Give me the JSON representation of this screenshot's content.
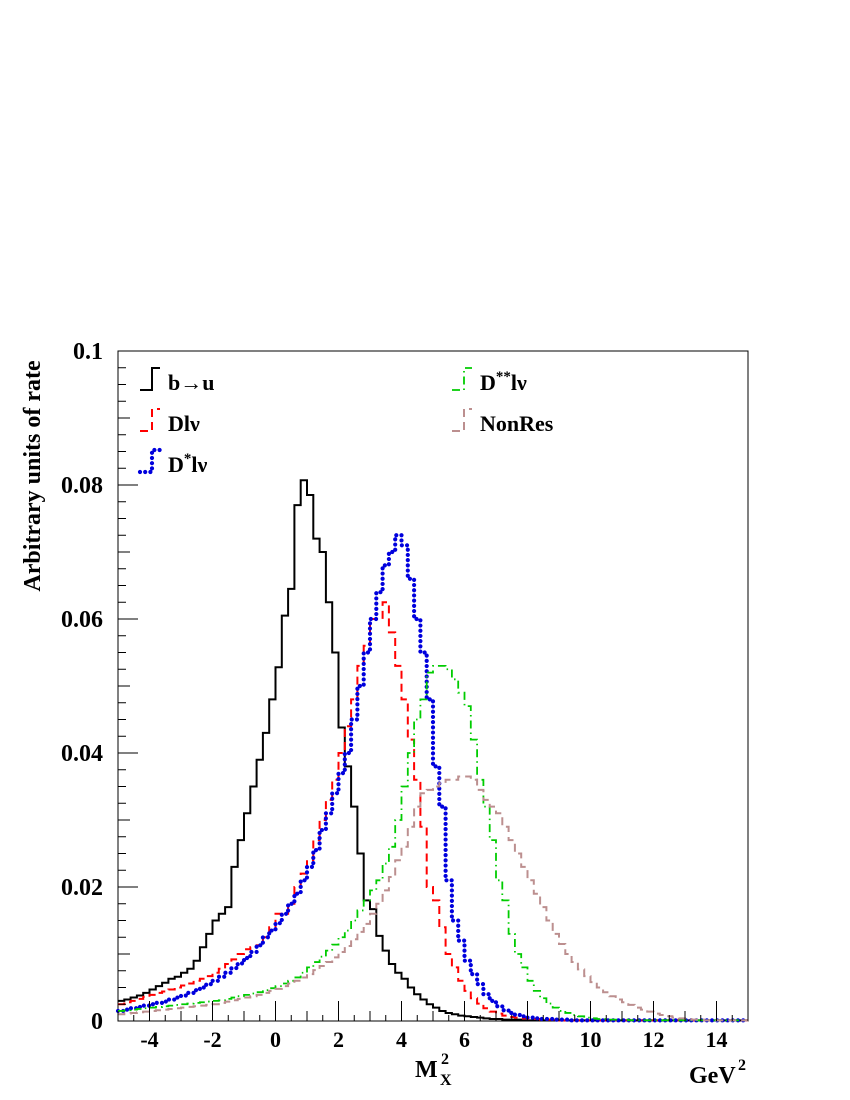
{
  "chart_data": {
    "type": "line",
    "style": "step-histogram",
    "xlabel": "M",
    "xlabel_sup": "2",
    "xlabel_sub": "X",
    "xunit": "GeV",
    "xunit_sup": "2",
    "ylabel": "Arbitrary units of rate",
    "xlim": [
      -5,
      15
    ],
    "ylim": [
      0,
      0.1
    ],
    "grid": false,
    "x_ticks": [
      "-4",
      "-2",
      "0",
      "2",
      "4",
      "6",
      "8",
      "10",
      "12",
      "14"
    ],
    "x_tick_values": [
      -4,
      -2,
      0,
      2,
      4,
      6,
      8,
      10,
      12,
      14
    ],
    "y_ticks": [
      "0",
      "0.02",
      "0.04",
      "0.06",
      "0.08",
      "0.1"
    ],
    "y_tick_values": [
      0,
      0.02,
      0.04,
      0.06,
      0.08,
      0.1
    ],
    "bin_width": 0.2,
    "x": [
      -5.0,
      -4.8,
      -4.6,
      -4.4,
      -4.2,
      -4.0,
      -3.8,
      -3.6,
      -3.4,
      -3.2,
      -3.0,
      -2.8,
      -2.6,
      -2.4,
      -2.2,
      -2.0,
      -1.8,
      -1.6,
      -1.4,
      -1.2,
      -1.0,
      -0.8,
      -0.6,
      -0.4,
      -0.2,
      0.0,
      0.2,
      0.4,
      0.6,
      0.8,
      1.0,
      1.2,
      1.4,
      1.6,
      1.8,
      2.0,
      2.2,
      2.4,
      2.6,
      2.8,
      3.0,
      3.2,
      3.4,
      3.6,
      3.8,
      4.0,
      4.2,
      4.4,
      4.6,
      4.8,
      5.0,
      5.2,
      5.4,
      5.6,
      5.8,
      6.0,
      6.2,
      6.4,
      6.6,
      6.8,
      7.0,
      7.2,
      7.4,
      7.6,
      7.8,
      8.0,
      8.2,
      8.4,
      8.6,
      8.8,
      9.0,
      9.2,
      9.4,
      9.6,
      9.8,
      10.0,
      10.2,
      10.4,
      10.6,
      10.8,
      11.0,
      11.2,
      11.4,
      11.6,
      11.8,
      12.0,
      12.2,
      12.4,
      12.6,
      12.8,
      13.0,
      13.2,
      13.4,
      13.6,
      13.8,
      14.0,
      14.2,
      14.4,
      14.6,
      14.8
    ],
    "legend": {
      "left": [
        "b→u",
        "Dlν",
        "D*lν"
      ],
      "right": [
        "D**lν",
        "NonRes"
      ]
    },
    "series": [
      {
        "name": "b→u",
        "color": "#000000",
        "dash": "solid",
        "values": [
          0.003,
          0.0032,
          0.0035,
          0.0038,
          0.0042,
          0.0047,
          0.0052,
          0.0057,
          0.0063,
          0.0066,
          0.0072,
          0.0078,
          0.009,
          0.011,
          0.013,
          0.015,
          0.016,
          0.017,
          0.023,
          0.027,
          0.031,
          0.035,
          0.039,
          0.043,
          0.048,
          0.0528,
          0.0605,
          0.0645,
          0.077,
          0.0807,
          0.0785,
          0.072,
          0.07,
          0.0625,
          0.055,
          0.0438,
          0.038,
          0.032,
          0.025,
          0.018,
          0.0167,
          0.0127,
          0.0105,
          0.0085,
          0.0072,
          0.0063,
          0.005,
          0.004,
          0.0032,
          0.0025,
          0.002,
          0.0015,
          0.0012,
          0.001,
          0.0008,
          0.0007,
          0.0006,
          0.0005,
          0.0004,
          0.0003,
          0.0003,
          0.0002,
          0.0002,
          0.0002,
          0.0001,
          0.0001,
          0.0001,
          0.0001,
          0.0001,
          0.0001,
          0.0001,
          0.0001,
          0.0001,
          0.0001,
          0.0001,
          0.0001,
          0.0001,
          0.0001,
          0.0001,
          0.0001,
          0.0001,
          0.0001,
          0.0001,
          0.0001,
          0.0001,
          0.0001,
          0.0001,
          0.0001,
          0.0001,
          0.0001,
          0.0001,
          0.0001,
          0.0001,
          0.0001,
          0.0001,
          0.0001,
          0.0001,
          0.0001,
          0.0001,
          0.0001
        ]
      },
      {
        "name": "Dlν",
        "color": "#ff0000",
        "dash": "dashed",
        "values": [
          0.0025,
          0.0028,
          0.003,
          0.0033,
          0.0036,
          0.0039,
          0.0042,
          0.0044,
          0.0047,
          0.005,
          0.0053,
          0.0056,
          0.006,
          0.0063,
          0.0067,
          0.0072,
          0.0078,
          0.0085,
          0.0092,
          0.01,
          0.0107,
          0.011,
          0.0113,
          0.0125,
          0.014,
          0.016,
          0.016,
          0.0175,
          0.02,
          0.022,
          0.024,
          0.027,
          0.03,
          0.033,
          0.036,
          0.04,
          0.044,
          0.048,
          0.053,
          0.056,
          0.06,
          0.06,
          0.0625,
          0.058,
          0.053,
          0.048,
          0.042,
          0.036,
          0.029,
          0.02,
          0.018,
          0.014,
          0.01,
          0.008,
          0.006,
          0.0045,
          0.0034,
          0.0026,
          0.0019,
          0.0014,
          0.0011,
          0.0008,
          0.0006,
          0.0005,
          0.0004,
          0.0003,
          0.0003,
          0.0002,
          0.0002,
          0.0002,
          0.0001,
          0.0001,
          0.0001,
          0.0001,
          0.0001,
          0.0001,
          0.0001,
          0.0001,
          0.0001,
          0.0001,
          0.0001,
          0.0001,
          0.0001,
          0.0001,
          0.0001,
          0.0001,
          0.0001,
          0.0001,
          0.0001,
          0.0001,
          0.0001,
          0.0001,
          0.0001,
          0.0001,
          0.0001,
          0.0001,
          0.0001,
          0.0001,
          0.0001,
          0.0001
        ]
      },
      {
        "name": "D*lν",
        "color": "#0000dd",
        "dash": "dotted",
        "values": [
          0.0015,
          0.0017,
          0.0019,
          0.0021,
          0.0023,
          0.0025,
          0.0027,
          0.0029,
          0.0032,
          0.0035,
          0.0038,
          0.0042,
          0.0046,
          0.005,
          0.0055,
          0.006,
          0.0066,
          0.0072,
          0.0079,
          0.0086,
          0.0094,
          0.0103,
          0.0113,
          0.0125,
          0.0135,
          0.0146,
          0.016,
          0.0175,
          0.019,
          0.021,
          0.023,
          0.0255,
          0.0285,
          0.031,
          0.034,
          0.037,
          0.04,
          0.045,
          0.05,
          0.055,
          0.06,
          0.064,
          0.068,
          0.07,
          0.0725,
          0.071,
          0.066,
          0.06,
          0.055,
          0.048,
          0.038,
          0.032,
          0.021,
          0.015,
          0.012,
          0.009,
          0.007,
          0.0055,
          0.004,
          0.003,
          0.0022,
          0.0016,
          0.0012,
          0.0009,
          0.0007,
          0.0005,
          0.0004,
          0.0003,
          0.0003,
          0.0002,
          0.0002,
          0.0002,
          0.0001,
          0.0001,
          0.0001,
          0.0001,
          0.0001,
          0.0001,
          0.0001,
          0.0001,
          0.0001,
          0.0001,
          0.0001,
          0.0001,
          0.0001,
          0.0001,
          0.0001,
          0.0001,
          0.0001,
          0.0001,
          0.0001,
          0.0001,
          0.0001,
          0.0001,
          0.0001,
          0.0001,
          0.0001,
          0.0001,
          0.0001,
          0.0001
        ]
      },
      {
        "name": "D**lν",
        "color": "#00cc00",
        "dash": "dashdot",
        "values": [
          0.0015,
          0.0016,
          0.0017,
          0.0018,
          0.0019,
          0.002,
          0.0021,
          0.0022,
          0.0023,
          0.0024,
          0.0025,
          0.0026,
          0.0027,
          0.0028,
          0.0029,
          0.003,
          0.0031,
          0.0033,
          0.0035,
          0.0037,
          0.0039,
          0.0041,
          0.0043,
          0.0046,
          0.0049,
          0.0052,
          0.0056,
          0.006,
          0.0065,
          0.0072,
          0.008,
          0.0088,
          0.0096,
          0.0105,
          0.0114,
          0.0125,
          0.0135,
          0.015,
          0.0165,
          0.018,
          0.0195,
          0.021,
          0.0235,
          0.026,
          0.03,
          0.035,
          0.04,
          0.045,
          0.048,
          0.052,
          0.053,
          0.053,
          0.0525,
          0.051,
          0.049,
          0.047,
          0.042,
          0.036,
          0.032,
          0.027,
          0.021,
          0.018,
          0.013,
          0.01,
          0.008,
          0.006,
          0.0045,
          0.0034,
          0.0026,
          0.002,
          0.0015,
          0.0012,
          0.0009,
          0.0007,
          0.0005,
          0.0004,
          0.0003,
          0.0003,
          0.0002,
          0.0002,
          0.0002,
          0.0001,
          0.0001,
          0.0001,
          0.0001,
          0.0001,
          0.0001,
          0.0001,
          0.0001,
          0.0001,
          0.0001,
          0.0001,
          0.0001,
          0.0001,
          0.0001,
          0.0001,
          0.0001,
          0.0001,
          0.0001,
          0.0001
        ]
      },
      {
        "name": "NonRes",
        "color": "#bc8f8f",
        "dash": "dashed",
        "values": [
          0.001,
          0.0011,
          0.0012,
          0.0013,
          0.0014,
          0.0015,
          0.0016,
          0.0017,
          0.0018,
          0.0019,
          0.002,
          0.0021,
          0.0022,
          0.0023,
          0.0024,
          0.0025,
          0.0027,
          0.0029,
          0.0031,
          0.0033,
          0.0035,
          0.0037,
          0.0039,
          0.0042,
          0.0045,
          0.0048,
          0.0052,
          0.0056,
          0.006,
          0.0065,
          0.007,
          0.0076,
          0.0082,
          0.0088,
          0.0095,
          0.0103,
          0.0112,
          0.0122,
          0.0133,
          0.0145,
          0.016,
          0.0175,
          0.0195,
          0.0215,
          0.024,
          0.026,
          0.029,
          0.032,
          0.034,
          0.0345,
          0.035,
          0.0355,
          0.036,
          0.036,
          0.0365,
          0.0365,
          0.036,
          0.0345,
          0.033,
          0.032,
          0.031,
          0.029,
          0.027,
          0.025,
          0.023,
          0.021,
          0.019,
          0.017,
          0.015,
          0.013,
          0.0115,
          0.01,
          0.0088,
          0.0077,
          0.0067,
          0.0058,
          0.005,
          0.0043,
          0.0037,
          0.0032,
          0.0028,
          0.0024,
          0.002,
          0.0017,
          0.0014,
          0.0011,
          0.0009,
          0.0007,
          0.0005,
          0.0004,
          0.0003,
          0.0002,
          0.0002,
          0.0001,
          0.0001,
          0.0001,
          0.0001,
          0.0001,
          0.0001,
          0.0001
        ]
      }
    ]
  }
}
